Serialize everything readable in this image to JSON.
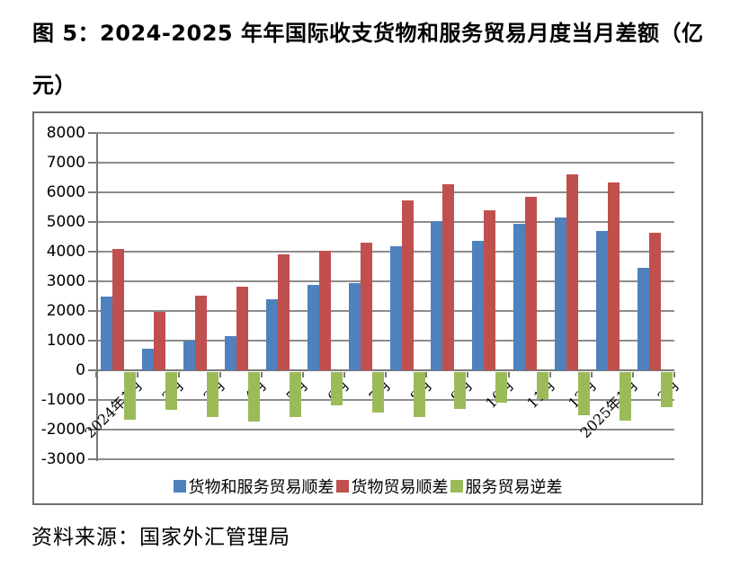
{
  "figure": {
    "title_lines": [
      "图 5：2024-2025 年年国际收支货物和服务贸易月度当月差额（亿",
      "元）"
    ],
    "source": "资料来源：国家外汇管理局"
  },
  "chart_data": {
    "type": "bar",
    "title": "图 5：2024-2025 年年国际收支货物和服务贸易月度当月差额（亿元）",
    "categories": [
      "2024年1月",
      "2月",
      "3月",
      "4月",
      "5月",
      "6月",
      "7月",
      "8月",
      "9月",
      "10月",
      "11月",
      "12月",
      "2025年1月",
      "2月"
    ],
    "series": [
      {
        "name": "货物和服务贸易顺差",
        "color": "#4F81BD",
        "values": [
          2480,
          720,
          990,
          1150,
          2390,
          2890,
          2940,
          4190,
          5020,
          4370,
          4940,
          5160,
          4700,
          3460
        ]
      },
      {
        "name": "货物贸易顺差",
        "color": "#C0504D",
        "values": [
          4080,
          1980,
          2520,
          2810,
          3910,
          4020,
          4290,
          5720,
          6260,
          5390,
          5840,
          6600,
          6330,
          4650
        ]
      },
      {
        "name": "服务贸易逆差",
        "color": "#9BBB59",
        "values": [
          -1600,
          -1260,
          -1530,
          -1660,
          -1520,
          -1130,
          -1350,
          -1530,
          -1240,
          -1020,
          -900,
          -1440,
          -1630,
          -1190
        ]
      }
    ],
    "ylim": [
      -3000,
      8000
    ],
    "ytick_interval": 1000,
    "grid": true,
    "grid_color": "#8C8C8C",
    "axis_color": "#787878",
    "legend_position": "bottom-inside",
    "xlabel": "",
    "ylabel": ""
  }
}
